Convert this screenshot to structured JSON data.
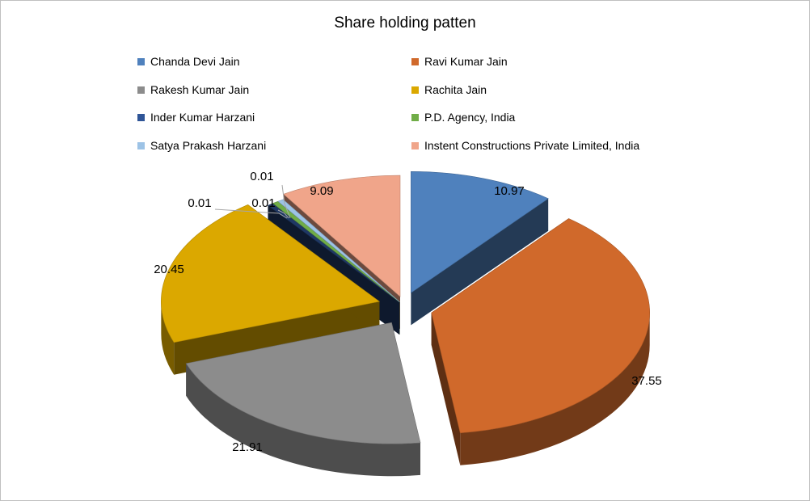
{
  "chart_data": {
    "type": "pie",
    "title": "Share holding patten",
    "legend_position": "top",
    "slices": [
      {
        "label": "Chanda Devi Jain",
        "value": 10.97,
        "value_text": "10.97",
        "color": "#4f81bd"
      },
      {
        "label": "Ravi Kumar Jain",
        "value": 37.55,
        "value_text": "37.55",
        "color": "#d0692b"
      },
      {
        "label": "Rakesh Kumar Jain",
        "value": 21.91,
        "value_text": "21.91",
        "color": "#8c8c8c"
      },
      {
        "label": "Rachita Jain",
        "value": 20.45,
        "value_text": "20.45",
        "color": "#dba800"
      },
      {
        "label": "Inder Kumar Harzani",
        "value": 0.01,
        "value_text": "0.01",
        "color": "#1f3864"
      },
      {
        "label": "P.D. Agency, India",
        "value": 0.01,
        "value_text": "0.01",
        "color": "#70ad47"
      },
      {
        "label": "Satya Prakash Harzani",
        "value": 0.01,
        "value_text": "0.01",
        "color": "#9dc3e6"
      },
      {
        "label": "Instent Constructions Private Limited, India",
        "value": 9.09,
        "value_text": "9.09",
        "color": "#f0a58a"
      }
    ]
  }
}
